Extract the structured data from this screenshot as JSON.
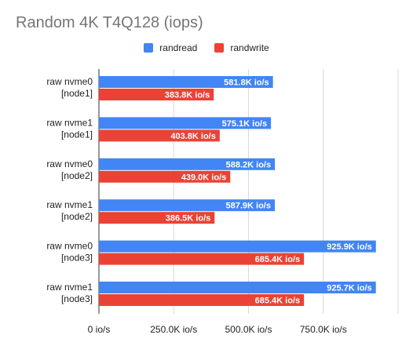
{
  "chart_data": {
    "type": "bar",
    "orientation": "horizontal",
    "title": "Random 4K T4Q128 (iops)",
    "categories": [
      [
        "raw nvme0",
        "[node1]"
      ],
      [
        "raw nvme1",
        "[node1]"
      ],
      [
        "raw nvme0",
        "[node2]"
      ],
      [
        "raw nvme1",
        "[node2]"
      ],
      [
        "raw nvme0",
        "[node3]"
      ],
      [
        "raw nvme1",
        "[node3]"
      ]
    ],
    "series": [
      {
        "name": "randread",
        "color": "#4285F4",
        "values": [
          581800,
          575100,
          588200,
          587900,
          925900,
          925700
        ],
        "labels": [
          "581.8K io/s",
          "575.1K io/s",
          "588.2K io/s",
          "587.9K io/s",
          "925.9K io/s",
          "925.7K io/s"
        ]
      },
      {
        "name": "randwrite",
        "color": "#EA4335",
        "values": [
          383800,
          403800,
          439000,
          386500,
          685400,
          685400
        ],
        "labels": [
          "383.8K io/s",
          "403.8K io/s",
          "439.0K io/s",
          "386.5K io/s",
          "685.4K io/s",
          "685.4K io/s"
        ]
      }
    ],
    "xlim": [
      0,
      1000000
    ],
    "xticks": [
      0,
      250000,
      500000,
      750000
    ],
    "xtick_labels": [
      "0 io/s",
      "250.0K io/s",
      "500.0K io/s",
      "750.0K io/s"
    ],
    "grid": true,
    "legend_position": "top-center"
  }
}
